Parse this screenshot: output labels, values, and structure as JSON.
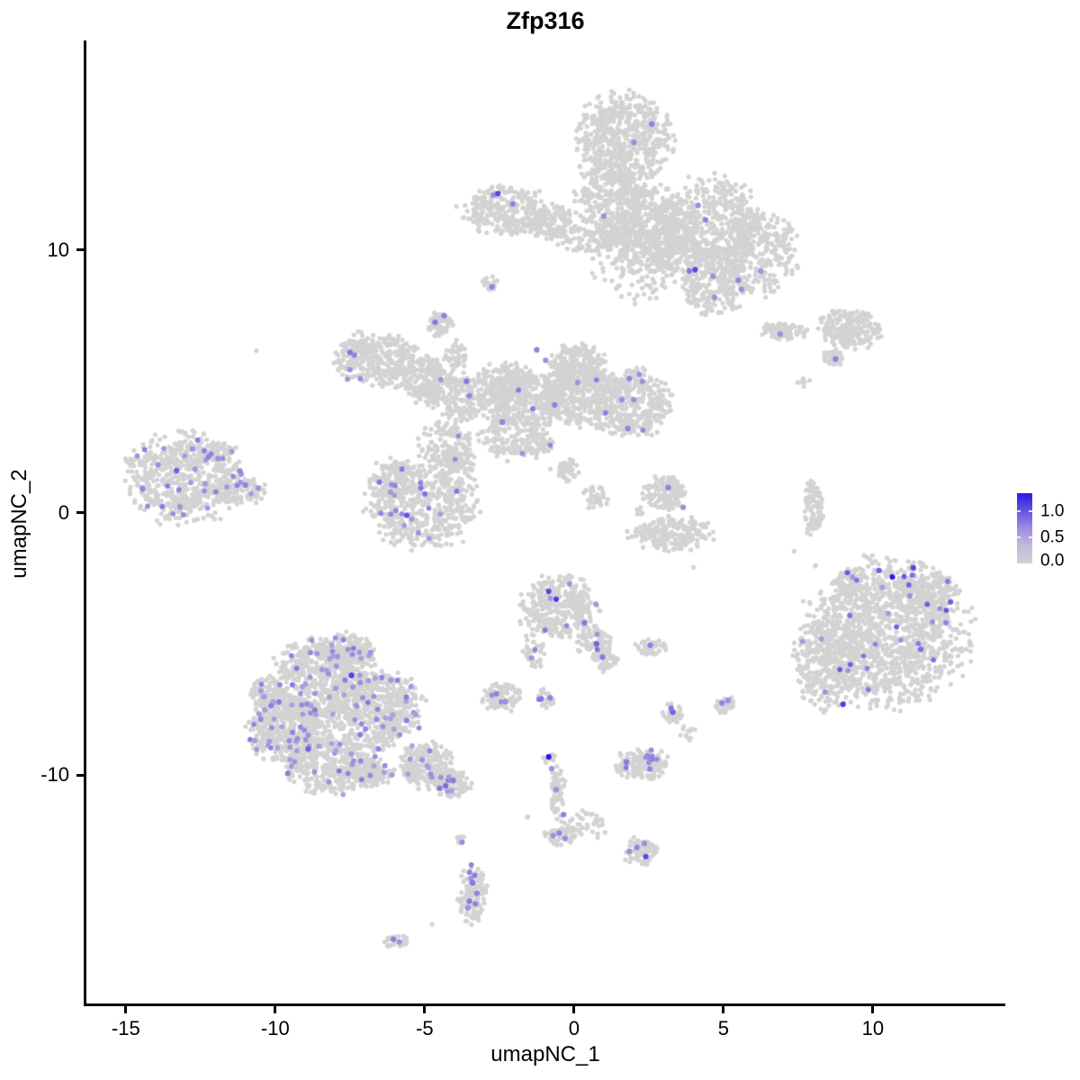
{
  "chart_data": {
    "type": "scatter",
    "title": "Zfp316",
    "xlabel": "umapNC_1",
    "ylabel": "umapNC_2",
    "x_ticks": [
      -15,
      -10,
      -5,
      0,
      5,
      10
    ],
    "y_ticks": [
      10,
      0,
      -10
    ],
    "x_range": [
      -16.35,
      14.37
    ],
    "y_range": [
      -18.73,
      17.98
    ],
    "grid": false,
    "legend": {
      "position": "right",
      "labels": [
        "1.0",
        "0.5",
        "0.0"
      ],
      "values": [
        1.0,
        0.5,
        0.0
      ]
    },
    "colors": {
      "point_low": "#D3D3D3",
      "point_mid": "#A08CE0",
      "point_high": "#2B18E8",
      "axis": "#000000"
    },
    "point_radius_px": {
      "base": 2.6,
      "expressing": 2.9,
      "highlight": 3.1
    },
    "clusters": [
      {
        "name": "top-mushroom",
        "blobs": [
          [
            1.7,
            14.2,
            1.5,
            1.7,
            550
          ],
          [
            1.3,
            11.9,
            1.2,
            1.4,
            300
          ],
          [
            2.6,
            10.9,
            1.3,
            1.5,
            350
          ],
          [
            4.6,
            11.0,
            1.5,
            1.7,
            420
          ],
          [
            6.1,
            9.9,
            1.3,
            1.5,
            300
          ],
          [
            4.6,
            8.8,
            1.1,
            1.2,
            220
          ],
          [
            2.0,
            9.3,
            1.2,
            1.3,
            110
          ],
          [
            1.6,
            10.5,
            0.8,
            0.9,
            130
          ],
          [
            3.3,
            10.0,
            0.9,
            0.9,
            130
          ]
        ],
        "expr_n": 0,
        "expr_range": [
          0.45,
          0.6
        ],
        "highlights": [
          [
            2.6,
            14.8,
            0.55
          ],
          [
            2.0,
            14.1,
            0.5
          ],
          [
            4.15,
            11.7,
            0.5
          ],
          [
            4.4,
            11.15,
            0.55
          ],
          [
            1.0,
            11.3,
            0.5
          ],
          [
            4.05,
            9.25,
            0.8
          ],
          [
            3.85,
            9.2,
            0.6
          ],
          [
            4.65,
            9.0,
            0.5
          ],
          [
            5.5,
            8.85,
            0.55
          ],
          [
            5.6,
            8.5,
            0.5
          ],
          [
            4.7,
            8.2,
            0.5
          ],
          [
            6.25,
            9.2,
            0.45
          ]
        ]
      },
      {
        "name": "top-left-wing",
        "blobs": [
          [
            -2.35,
            11.5,
            1.4,
            0.9,
            280
          ],
          [
            -0.8,
            11.1,
            0.8,
            0.6,
            120
          ],
          [
            0.35,
            10.4,
            0.9,
            0.5,
            70
          ]
        ],
        "expr_n": 0,
        "expr_range": [
          0.45,
          0.6
        ],
        "highlights": [
          [
            -2.7,
            12.1,
            0.5
          ],
          [
            -2.55,
            12.15,
            0.8
          ],
          [
            -2.05,
            11.75,
            0.55
          ]
        ]
      },
      {
        "name": "tiny-satellite",
        "blobs": [
          [
            -2.8,
            8.75,
            0.3,
            0.35,
            16
          ]
        ],
        "expr_n": 0,
        "expr_range": [
          0.45,
          0.6
        ],
        "highlights": [
          [
            -2.75,
            8.6,
            0.55
          ]
        ]
      },
      {
        "name": "northeast-strip",
        "blobs": [
          [
            7.0,
            6.9,
            0.75,
            0.3,
            85
          ],
          [
            9.25,
            7.0,
            1.0,
            0.7,
            220
          ],
          [
            8.7,
            5.9,
            0.35,
            0.3,
            35
          ],
          [
            7.7,
            4.95,
            0.25,
            0.2,
            6
          ]
        ],
        "expr_n": 0,
        "expr_range": [
          0.45,
          0.6
        ],
        "highlights": [
          [
            6.9,
            6.8,
            0.5
          ],
          [
            8.75,
            5.85,
            0.55
          ]
        ]
      },
      {
        "name": "central-cross",
        "blobs": [
          [
            -6.6,
            5.9,
            1.3,
            0.95,
            330
          ],
          [
            -5.1,
            5.1,
            0.9,
            0.8,
            210
          ],
          [
            -3.8,
            4.4,
            1.0,
            0.9,
            190
          ],
          [
            -1.6,
            4.3,
            1.4,
            1.0,
            380
          ],
          [
            0.3,
            4.5,
            1.2,
            1.2,
            330
          ],
          [
            1.9,
            4.2,
            1.25,
            1.2,
            360
          ],
          [
            0.1,
            5.6,
            0.9,
            0.8,
            190
          ],
          [
            -2.3,
            5.1,
            0.8,
            0.6,
            140
          ],
          [
            -4.3,
            2.6,
            0.85,
            0.9,
            110
          ],
          [
            -3.9,
            1.9,
            0.6,
            0.7,
            90
          ],
          [
            -2.0,
            2.9,
            1.1,
            0.85,
            130
          ],
          [
            -1.2,
            2.7,
            0.45,
            0.45,
            40
          ],
          [
            -0.3,
            1.6,
            0.45,
            0.45,
            40
          ],
          [
            0.75,
            0.6,
            0.45,
            0.45,
            35
          ],
          [
            -4.5,
            7.2,
            0.4,
            0.45,
            55
          ],
          [
            -3.95,
            6.0,
            0.35,
            0.6,
            45
          ]
        ],
        "expr_n": 14,
        "expr_range": [
          0.45,
          0.6
        ],
        "highlights": [
          [
            -7.5,
            6.1,
            0.6
          ],
          [
            -7.35,
            6.0,
            0.55
          ],
          [
            -7.5,
            5.45,
            0.5
          ],
          [
            -7.15,
            5.1,
            0.5
          ],
          [
            -3.6,
            5.0,
            0.6
          ],
          [
            -3.5,
            4.45,
            0.55
          ],
          [
            -2.4,
            3.45,
            0.55
          ],
          [
            -1.25,
            6.2,
            0.55
          ],
          [
            -0.95,
            5.8,
            0.5
          ],
          [
            -0.65,
            4.1,
            0.55
          ],
          [
            1.85,
            5.1,
            0.55
          ],
          [
            1.6,
            4.3,
            0.5
          ],
          [
            2.0,
            4.3,
            0.5
          ],
          [
            1.8,
            3.2,
            0.55
          ],
          [
            -4.65,
            7.25,
            0.6
          ],
          [
            -4.35,
            7.5,
            0.55
          ]
        ]
      },
      {
        "name": "mid-left-round",
        "blobs": [
          [
            -5.1,
            0.3,
            1.75,
            1.6,
            520
          ],
          [
            -6.0,
            1.3,
            0.8,
            0.7,
            90
          ]
        ],
        "expr_n": 20,
        "expr_range": [
          0.4,
          0.65
        ],
        "highlights": [
          [
            -5.6,
            -0.1,
            0.75
          ]
        ]
      },
      {
        "name": "far-left",
        "blobs": [
          [
            -13.05,
            1.35,
            1.8,
            1.6,
            560
          ],
          [
            -11.2,
            0.85,
            0.8,
            0.55,
            110
          ],
          [
            -12.0,
            2.3,
            0.6,
            0.4,
            60
          ]
        ],
        "expr_n": 38,
        "expr_range": [
          0.4,
          0.6
        ],
        "highlights": [
          [
            -13.3,
            1.6,
            0.7
          ],
          [
            -11.0,
            1.05,
            0.55
          ]
        ]
      },
      {
        "name": "mid-small-pair",
        "blobs": [
          [
            3.05,
            0.75,
            0.7,
            0.6,
            130
          ],
          [
            3.2,
            -0.8,
            1.3,
            0.6,
            200
          ],
          [
            2.2,
            0.1,
            0.2,
            0.2,
            8
          ]
        ],
        "expr_n": 0,
        "expr_range": [
          0.45,
          0.6
        ],
        "highlights": [
          [
            3.15,
            0.95,
            0.55
          ],
          [
            3.65,
            0.2,
            0.5
          ]
        ]
      },
      {
        "name": "right-sliver",
        "blobs": [
          [
            8.0,
            0.2,
            0.3,
            1.05,
            85
          ]
        ],
        "expr_n": 0,
        "expr_range": [
          0.45,
          0.6
        ],
        "highlights": []
      },
      {
        "name": "right-big",
        "blobs": [
          [
            10.45,
            -4.6,
            2.6,
            2.6,
            1300
          ],
          [
            8.35,
            -5.7,
            0.95,
            1.7,
            240
          ],
          [
            11.8,
            -3.1,
            1.0,
            0.8,
            150
          ],
          [
            9.3,
            -2.6,
            0.5,
            0.5,
            50
          ]
        ],
        "expr_n": 30,
        "expr_range": [
          0.4,
          0.75
        ],
        "highlights": [
          [
            10.65,
            -2.45,
            1.0
          ],
          [
            11.35,
            -2.1,
            0.8
          ],
          [
            10.2,
            -2.2,
            0.7
          ],
          [
            9.0,
            -7.3,
            0.85
          ],
          [
            12.6,
            -3.4,
            0.7
          ],
          [
            11.6,
            -5.2,
            0.65
          ]
        ]
      },
      {
        "name": "center-bottom",
        "blobs": [
          [
            -0.55,
            -3.6,
            1.25,
            1.1,
            320
          ],
          [
            0.65,
            -4.95,
            0.55,
            0.6,
            80
          ],
          [
            1.05,
            -5.6,
            0.4,
            0.45,
            50
          ],
          [
            -1.35,
            -5.2,
            0.35,
            0.8,
            40
          ],
          [
            -2.4,
            -7.0,
            0.7,
            0.5,
            90
          ],
          [
            -0.95,
            -7.1,
            0.3,
            0.35,
            25
          ]
        ],
        "expr_n": 12,
        "expr_range": [
          0.45,
          0.65
        ],
        "highlights": [
          [
            -0.85,
            -3.0,
            0.8
          ],
          [
            -0.6,
            -3.3,
            0.85
          ],
          [
            0.35,
            -4.2,
            0.6
          ],
          [
            0.75,
            -5.0,
            0.7
          ],
          [
            0.95,
            -5.5,
            0.6
          ],
          [
            -2.6,
            -6.9,
            0.55
          ],
          [
            -2.3,
            -7.2,
            0.5
          ],
          [
            -1.1,
            -7.1,
            0.6
          ],
          [
            -0.8,
            -7.05,
            0.55
          ]
        ]
      },
      {
        "name": "scatter-bits-right",
        "blobs": [
          [
            2.6,
            -5.1,
            0.5,
            0.3,
            45
          ],
          [
            3.3,
            -7.6,
            0.35,
            0.4,
            30
          ],
          [
            5.05,
            -7.3,
            0.4,
            0.3,
            32
          ],
          [
            3.8,
            -8.4,
            0.25,
            0.3,
            12
          ]
        ],
        "expr_n": 0,
        "expr_range": [
          0.45,
          0.6
        ],
        "highlights": [
          [
            2.55,
            -5.05,
            0.55
          ],
          [
            3.3,
            -7.6,
            0.7
          ],
          [
            3.25,
            -7.45,
            0.6
          ],
          [
            4.95,
            -7.25,
            0.55
          ],
          [
            5.15,
            -7.15,
            0.5
          ]
        ]
      },
      {
        "name": "bottom-left-big",
        "blobs": [
          [
            -8.4,
            -6.45,
            1.7,
            1.55,
            650
          ],
          [
            -7.6,
            -5.2,
            0.8,
            0.6,
            140
          ],
          [
            -9.6,
            -8.2,
            1.25,
            1.2,
            420
          ],
          [
            -6.6,
            -7.5,
            1.4,
            1.4,
            480
          ],
          [
            -8.1,
            -9.6,
            1.5,
            1.0,
            380
          ],
          [
            -5.0,
            -9.6,
            0.8,
            0.85,
            200
          ],
          [
            -4.1,
            -10.3,
            0.6,
            0.5,
            130
          ],
          [
            -10.3,
            -6.9,
            0.6,
            0.6,
            80
          ],
          [
            -6.9,
            -9.9,
            0.8,
            0.5,
            120
          ]
        ],
        "expr_n": 150,
        "expr_range": [
          0.35,
          0.6
        ],
        "highlights": [
          [
            -7.45,
            -6.2,
            0.85
          ],
          [
            -8.9,
            -9.0,
            0.7
          ],
          [
            -4.3,
            -10.4,
            0.65
          ],
          [
            -4.05,
            -10.2,
            0.6
          ],
          [
            -4.5,
            -10.5,
            0.6
          ]
        ]
      },
      {
        "name": "bottom-chain",
        "blobs": [
          [
            -0.85,
            -9.35,
            0.2,
            0.25,
            12
          ],
          [
            -0.55,
            -10.6,
            0.25,
            0.9,
            55
          ],
          [
            0.3,
            -11.9,
            0.9,
            0.5,
            45
          ],
          [
            2.25,
            -12.9,
            0.55,
            0.5,
            70
          ],
          [
            -0.45,
            -12.3,
            0.5,
            0.4,
            55
          ],
          [
            -1.6,
            -11.6,
            0.1,
            0.1,
            3
          ]
        ],
        "expr_n": 0,
        "expr_range": [
          0.45,
          0.6
        ],
        "highlights": [
          [
            -0.85,
            -9.3,
            1.0
          ],
          [
            -0.75,
            -9.75,
            0.5
          ],
          [
            -0.6,
            -10.55,
            0.5
          ],
          [
            -0.35,
            -11.5,
            0.55
          ],
          [
            -0.5,
            -12.2,
            0.55
          ],
          [
            -0.3,
            -12.4,
            0.5
          ],
          [
            -0.7,
            -12.3,
            0.5
          ],
          [
            2.4,
            -13.1,
            0.8
          ],
          [
            2.1,
            -12.75,
            0.55
          ],
          [
            2.35,
            -12.6,
            0.5
          ],
          [
            1.85,
            -12.9,
            0.5
          ]
        ]
      },
      {
        "name": "bottom-small-cluster",
        "blobs": [
          [
            2.3,
            -9.6,
            0.85,
            0.55,
            150
          ]
        ],
        "expr_n": 9,
        "expr_range": [
          0.45,
          0.6
        ],
        "highlights": [
          [
            1.75,
            -9.5,
            0.6
          ],
          [
            2.6,
            -9.4,
            0.55
          ]
        ]
      },
      {
        "name": "bottom-tail",
        "blobs": [
          [
            -3.4,
            -14.55,
            0.45,
            1.05,
            130
          ],
          [
            -3.8,
            -12.5,
            0.12,
            0.3,
            6
          ],
          [
            -5.95,
            -16.3,
            0.45,
            0.25,
            26
          ]
        ],
        "expr_n": 3,
        "expr_range": [
          0.45,
          0.6
        ],
        "highlights": [
          [
            -3.5,
            -13.7,
            0.55
          ],
          [
            -3.4,
            -14.1,
            0.6
          ],
          [
            -3.25,
            -14.5,
            0.55
          ],
          [
            -3.5,
            -14.8,
            0.6
          ],
          [
            -3.3,
            -14.9,
            0.55
          ],
          [
            -3.55,
            -15.05,
            0.5
          ],
          [
            -6.05,
            -16.25,
            0.55
          ],
          [
            -5.85,
            -16.35,
            0.5
          ],
          [
            -3.75,
            -12.55,
            0.5
          ]
        ]
      },
      {
        "name": "isolated-singles",
        "blobs": [
          [
            -10.6,
            6.15,
            0.05,
            0.05,
            1
          ],
          [
            7.4,
            -1.45,
            0.05,
            0.05,
            1
          ],
          [
            8.05,
            -2.05,
            0.05,
            0.05,
            2
          ],
          [
            -4.75,
            -15.7,
            0.05,
            0.05,
            1
          ],
          [
            3.98,
            -2.1,
            0.05,
            0.05,
            1
          ]
        ],
        "expr_n": 0,
        "expr_range": [
          0,
          0
        ],
        "highlights": []
      }
    ]
  }
}
